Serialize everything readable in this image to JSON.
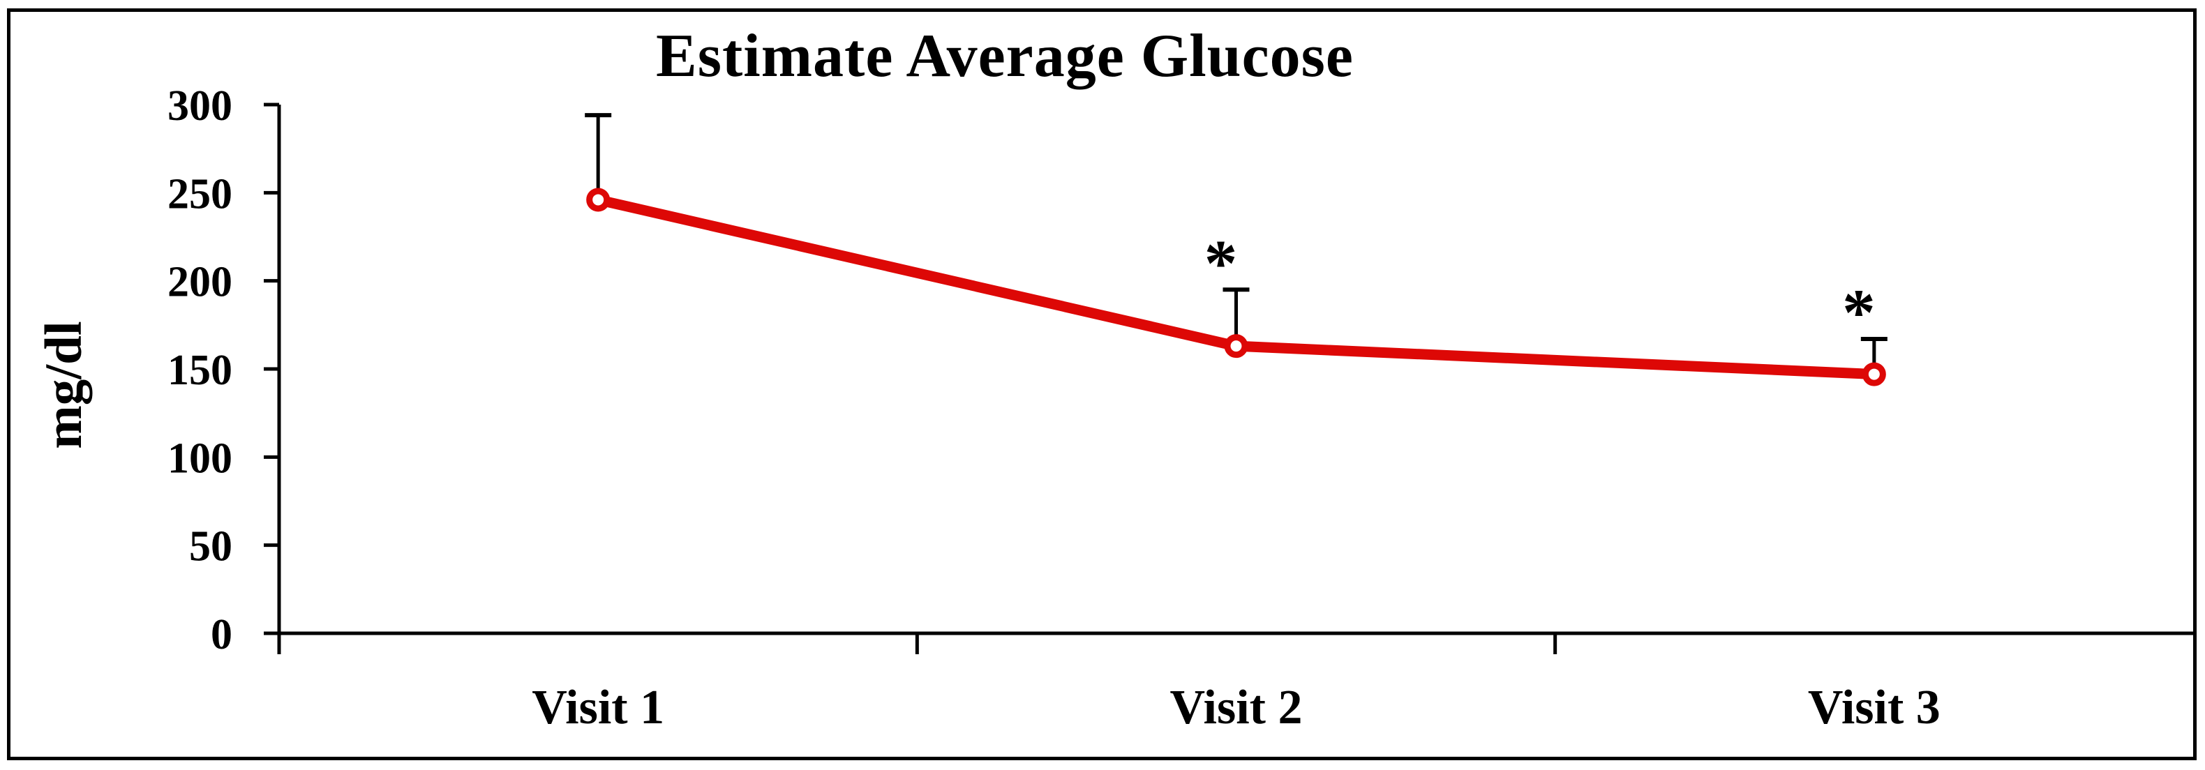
{
  "frame": {
    "background": "#ffffff",
    "border_color": "#000000"
  },
  "chart_data": {
    "type": "line",
    "title": "Estimate Average Glucose",
    "ylabel": "mg/dl",
    "xlabel": "",
    "categories": [
      "Visit 1",
      "Visit 2",
      "Visit 3"
    ],
    "series": [
      {
        "name": "Estimate Average Glucose",
        "color": "#dd0806",
        "marker": "open-circle",
        "values": [
          246,
          163,
          147
        ],
        "error_plus": [
          48,
          32,
          20
        ],
        "annotations": [
          "",
          "*",
          "*"
        ]
      }
    ],
    "ylim": [
      0,
      300
    ],
    "yticks": [
      0,
      50,
      100,
      150,
      200,
      250,
      300
    ],
    "grid": false,
    "legend": false,
    "axis_color": "#000000",
    "error_bar_color": "#000000",
    "text_color": "#000000"
  }
}
